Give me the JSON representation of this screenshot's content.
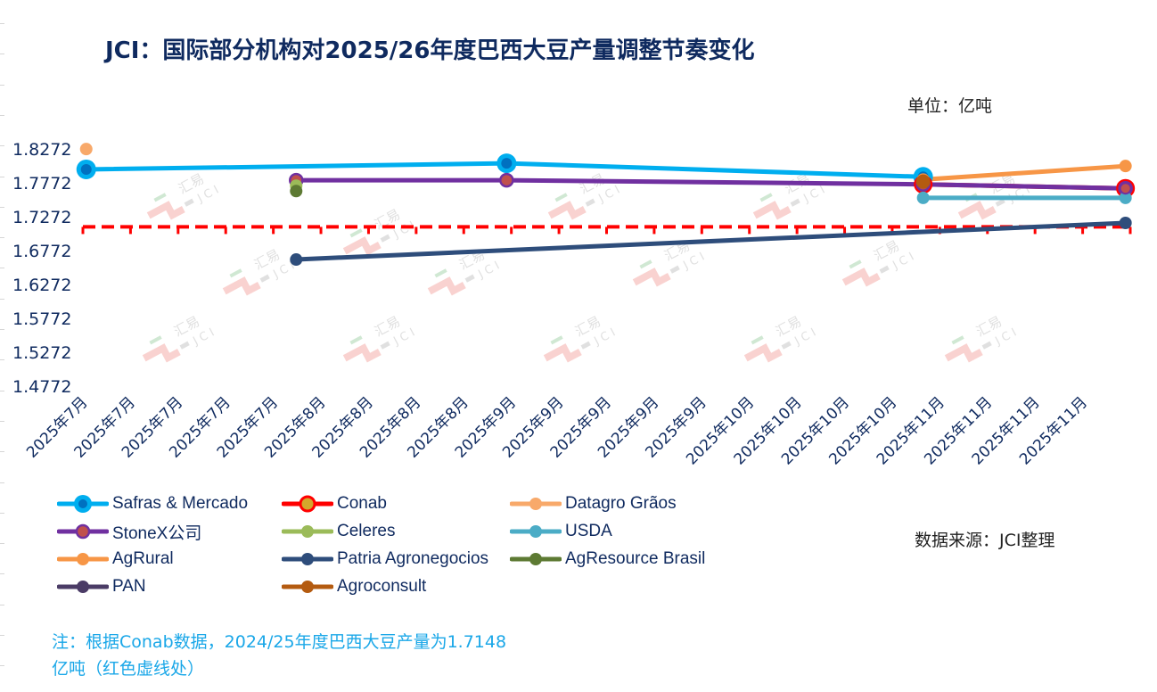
{
  "header": {
    "title": "JCI：国际部分机构对2025/26年度巴西大豆产量调整节奏变化",
    "unit": "单位：亿吨"
  },
  "footer": {
    "source": "数据来源：JCI整理",
    "note": "注：根据Conab数据，2024/25年度巴西大豆产量为1.7148亿吨（红色虚线处）"
  },
  "watermark": {
    "text_cn": "汇易",
    "text_en": "JCI"
  },
  "chart_data": {
    "type": "line",
    "title": "JCI：国际部分机构对2025/26年度巴西大豆产量调整节奏变化",
    "xlabel": "",
    "ylabel": "单位：亿吨",
    "categories": [
      "2025年7月",
      "2025年7月",
      "2025年7月",
      "2025年7月",
      "2025年7月",
      "2025年8月",
      "2025年8月",
      "2025年8月",
      "2025年8月",
      "2025年9月",
      "2025年9月",
      "2025年9月",
      "2025年9月",
      "2025年9月",
      "2025年10月",
      "2025年10月",
      "2025年10月",
      "2025年10月",
      "2025年11月",
      "2025年11月",
      "2025年11月",
      "2025年11月"
    ],
    "x_range": [
      0,
      22
    ],
    "yticks": [
      "1.8272",
      "1.7772",
      "1.7272",
      "1.6772",
      "1.6272",
      "1.5772",
      "1.5272",
      "1.4772"
    ],
    "ylim": [
      1.4772,
      1.8272
    ],
    "reference_line": {
      "value": 1.7148,
      "label": "2024/25年度巴西大豆产量(Conab)",
      "color": "#ff0000",
      "style": "dashed"
    },
    "grid": false,
    "legend_position": "bottom",
    "series": [
      {
        "name": "Safras & Mercado",
        "color": "#00aeef",
        "marker_inner": "#0070c0",
        "big": true,
        "points": [
          [
            0.07,
            1.797
          ],
          [
            8.9,
            1.806
          ],
          [
            17.65,
            1.786
          ]
        ]
      },
      {
        "name": "Conab",
        "color": "#ff0000",
        "marker_inner": "#d4a72c",
        "ring": true,
        "points": [
          [
            17.65,
            1.775
          ],
          [
            21.9,
            1.769
          ]
        ]
      },
      {
        "name": "Datagro Grãos",
        "color": "#f8a96a",
        "points": [
          [
            0.07,
            1.827
          ]
        ]
      },
      {
        "name": "StoneX公司",
        "color": "#7030a0",
        "marker_inner": "#c0504d",
        "points": [
          [
            4.48,
            1.781
          ],
          [
            8.9,
            1.781
          ],
          [
            17.65,
            1.775
          ],
          [
            21.9,
            1.769
          ]
        ]
      },
      {
        "name": "Celeres",
        "color": "#9bbb59",
        "points": [
          [
            4.48,
            1.773
          ]
        ]
      },
      {
        "name": "USDA",
        "color": "#4bacc6",
        "points": [
          [
            17.65,
            1.755
          ],
          [
            21.9,
            1.755
          ]
        ]
      },
      {
        "name": "AgRural",
        "color": "#f79646",
        "points": [
          [
            17.65,
            1.782
          ],
          [
            21.9,
            1.802
          ]
        ]
      },
      {
        "name": "Patria Agronegocios",
        "color": "#2e4d7b",
        "points": [
          [
            4.48,
            1.664
          ],
          [
            21.9,
            1.718
          ]
        ]
      },
      {
        "name": "AgResource Brasil",
        "color": "#5d7a33",
        "points": [
          [
            4.48,
            1.765
          ]
        ]
      },
      {
        "name": "PAN",
        "color": "#4b3c66",
        "points": []
      },
      {
        "name": "Agroconsult",
        "color": "#b45b10",
        "points": [
          [
            17.65,
            1.779
          ]
        ]
      }
    ]
  }
}
